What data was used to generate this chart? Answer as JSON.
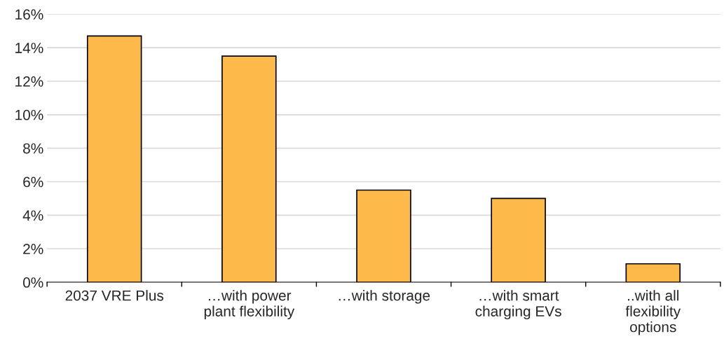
{
  "chart_data": {
    "type": "bar",
    "categories": [
      "2037 VRE Plus",
      "…with power\nplant flexibility",
      "…with storage",
      "…with smart\ncharging EVs",
      "..with all\nflexibility\noptions"
    ],
    "values": [
      14.7,
      13.5,
      5.5,
      5.0,
      1.1
    ],
    "color": "#fdb94a",
    "ylim": [
      0,
      16
    ],
    "yticks": [
      {
        "value": 0,
        "label": "0%"
      },
      {
        "value": 2,
        "label": "2%"
      },
      {
        "value": 4,
        "label": "4%"
      },
      {
        "value": 6,
        "label": "6%"
      },
      {
        "value": 8,
        "label": "8%"
      },
      {
        "value": 10,
        "label": "10%"
      },
      {
        "value": 12,
        "label": "12%"
      },
      {
        "value": 14,
        "label": "14%"
      },
      {
        "value": 16,
        "label": "16%"
      }
    ],
    "grid": "y"
  }
}
